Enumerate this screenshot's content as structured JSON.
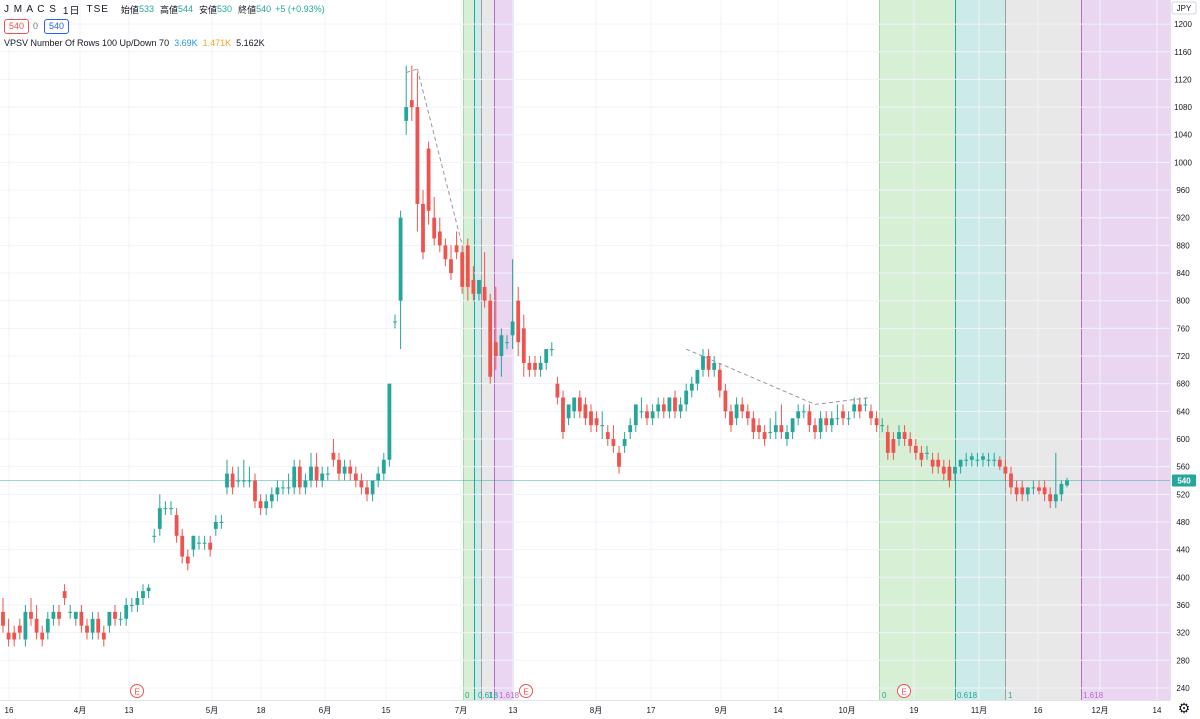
{
  "header": {
    "symbol": "J M A C S",
    "interval": "1日",
    "exchange": "TSE",
    "ohlc": [
      {
        "label": "始値",
        "value": "533"
      },
      {
        "label": "高値",
        "value": "544"
      },
      {
        "label": "安値",
        "value": "530"
      },
      {
        "label": "終値",
        "value": "540"
      }
    ],
    "change": "+5 (+0.93%)",
    "price_box_left": "540",
    "price_box_mid": "0",
    "price_box_right": "540",
    "indicator_name": "VPSV Number Of Rows 100 Up/Down 70",
    "indicator_values": [
      "3.69K",
      "1.471K",
      "5.162K"
    ]
  },
  "chart_data": {
    "type": "candlestick",
    "currency": "JPY",
    "y_ticks": [
      1200,
      1160,
      1120,
      1080,
      1040,
      1000,
      960,
      920,
      880,
      840,
      800,
      760,
      720,
      680,
      640,
      600,
      560,
      520,
      480,
      440,
      400,
      360,
      320,
      280,
      240
    ],
    "y_range": [
      219,
      1206
    ],
    "x_labels": [
      "16",
      "4月",
      "13",
      "5月",
      "18",
      "6月",
      "15",
      "7月",
      "13",
      "8月",
      "17",
      "9月",
      "14",
      "10月",
      "19",
      "11月",
      "16",
      "12月",
      "14"
    ],
    "current_price": "540",
    "candles": [
      [
        350,
        370,
        330,
        320
      ],
      [
        320,
        340,
        310,
        300
      ],
      [
        320,
        330,
        310,
        300
      ],
      [
        330,
        340,
        320,
        310
      ],
      [
        310,
        360,
        350,
        300
      ],
      [
        350,
        370,
        340,
        330
      ],
      [
        340,
        360,
        320,
        310
      ],
      [
        320,
        330,
        310,
        300
      ],
      [
        320,
        350,
        340,
        310
      ],
      [
        340,
        360,
        350,
        330
      ],
      [
        350,
        360,
        340,
        330
      ],
      [
        380,
        390,
        370,
        360
      ],
      [
        350,
        360,
        350,
        340
      ],
      [
        340,
        350,
        350,
        330
      ],
      [
        350,
        360,
        330,
        320
      ],
      [
        330,
        340,
        320,
        310
      ],
      [
        320,
        350,
        340,
        310
      ],
      [
        340,
        350,
        320,
        310
      ],
      [
        320,
        330,
        310,
        300
      ],
      [
        330,
        340,
        350,
        320
      ],
      [
        350,
        360,
        340,
        330
      ],
      [
        340,
        350,
        340,
        330
      ],
      [
        340,
        370,
        360,
        330
      ],
      [
        360,
        370,
        360,
        350
      ],
      [
        360,
        380,
        370,
        350
      ],
      [
        370,
        390,
        380,
        360
      ],
      [
        380,
        390,
        385,
        370
      ],
      [
        460,
        470,
        460,
        450
      ],
      [
        470,
        520,
        500,
        460
      ],
      [
        500,
        510,
        500,
        490
      ],
      [
        500,
        510,
        500,
        490
      ],
      [
        490,
        500,
        460,
        450
      ],
      [
        460,
        470,
        430,
        420
      ],
      [
        430,
        440,
        420,
        410
      ],
      [
        440,
        460,
        460,
        430
      ],
      [
        450,
        460,
        450,
        440
      ],
      [
        450,
        460,
        450,
        440
      ],
      [
        450,
        460,
        440,
        430
      ],
      [
        470,
        490,
        480,
        460
      ],
      [
        480,
        490,
        480,
        470
      ],
      [
        530,
        570,
        550,
        520
      ],
      [
        550,
        560,
        530,
        520
      ],
      [
        540,
        560,
        540,
        530
      ],
      [
        540,
        570,
        540,
        530
      ],
      [
        540,
        560,
        540,
        530
      ],
      [
        540,
        550,
        510,
        500
      ],
      [
        510,
        520,
        500,
        490
      ],
      [
        500,
        520,
        510,
        490
      ],
      [
        510,
        530,
        520,
        500
      ],
      [
        520,
        540,
        530,
        510
      ],
      [
        530,
        540,
        530,
        520
      ],
      [
        530,
        550,
        530,
        520
      ],
      [
        530,
        570,
        560,
        520
      ],
      [
        560,
        570,
        530,
        520
      ],
      [
        530,
        550,
        540,
        520
      ],
      [
        540,
        580,
        560,
        530
      ],
      [
        560,
        580,
        540,
        530
      ],
      [
        540,
        560,
        550,
        530
      ],
      [
        550,
        560,
        550,
        540
      ],
      [
        580,
        600,
        570,
        560
      ],
      [
        570,
        580,
        550,
        540
      ],
      [
        550,
        570,
        560,
        540
      ],
      [
        560,
        570,
        550,
        540
      ],
      [
        550,
        560,
        540,
        530
      ],
      [
        540,
        550,
        530,
        520
      ],
      [
        530,
        540,
        520,
        510
      ],
      [
        520,
        530,
        540,
        510
      ],
      [
        540,
        560,
        550,
        530
      ],
      [
        550,
        580,
        570,
        540
      ],
      [
        570,
        680,
        680,
        560
      ],
      [
        770,
        780,
        770,
        760
      ],
      [
        800,
        930,
        920,
        730
      ],
      [
        1060,
        1140,
        1080,
        1040
      ],
      [
        1090,
        1140,
        1080,
        1060
      ],
      [
        1080,
        1130,
        940,
        900
      ],
      [
        940,
        960,
        870,
        860
      ],
      [
        1020,
        1030,
        930,
        910
      ],
      [
        920,
        950,
        890,
        880
      ],
      [
        900,
        920,
        880,
        870
      ],
      [
        880,
        890,
        860,
        850
      ],
      [
        860,
        880,
        840,
        830
      ],
      [
        880,
        900,
        870,
        860
      ],
      [
        870,
        880,
        820,
        810
      ],
      [
        880,
        890,
        820,
        800
      ],
      [
        830,
        850,
        810,
        800
      ],
      [
        810,
        830,
        830,
        800
      ],
      [
        820,
        870,
        800,
        790
      ],
      [
        800,
        810,
        690,
        680
      ],
      [
        740,
        820,
        720,
        700
      ],
      [
        720,
        760,
        750,
        690
      ],
      [
        740,
        750,
        740,
        730
      ],
      [
        750,
        860,
        770,
        730
      ],
      [
        800,
        820,
        740,
        720
      ],
      [
        760,
        780,
        710,
        690
      ],
      [
        710,
        720,
        700,
        690
      ],
      [
        710,
        720,
        700,
        690
      ],
      [
        700,
        720,
        710,
        690
      ],
      [
        710,
        730,
        730,
        700
      ],
      [
        730,
        740,
        730,
        720
      ],
      [
        680,
        690,
        660,
        650
      ],
      [
        660,
        670,
        610,
        600
      ],
      [
        630,
        650,
        650,
        620
      ],
      [
        640,
        660,
        660,
        630
      ],
      [
        660,
        670,
        640,
        630
      ],
      [
        650,
        660,
        630,
        620
      ],
      [
        640,
        650,
        620,
        610
      ],
      [
        630,
        640,
        620,
        610
      ],
      [
        620,
        640,
        620,
        600
      ],
      [
        610,
        620,
        600,
        590
      ],
      [
        600,
        620,
        590,
        580
      ],
      [
        580,
        590,
        560,
        550
      ],
      [
        590,
        610,
        600,
        580
      ],
      [
        610,
        630,
        620,
        600
      ],
      [
        620,
        650,
        650,
        610
      ],
      [
        640,
        660,
        640,
        630
      ],
      [
        640,
        650,
        630,
        620
      ],
      [
        630,
        650,
        640,
        620
      ],
      [
        640,
        660,
        650,
        630
      ],
      [
        650,
        660,
        640,
        630
      ],
      [
        640,
        660,
        660,
        630
      ],
      [
        660,
        670,
        640,
        630
      ],
      [
        640,
        660,
        650,
        630
      ],
      [
        650,
        680,
        670,
        640
      ],
      [
        670,
        690,
        680,
        660
      ],
      [
        680,
        700,
        700,
        670
      ],
      [
        700,
        730,
        720,
        690
      ],
      [
        720,
        730,
        700,
        690
      ],
      [
        700,
        720,
        710,
        690
      ],
      [
        700,
        710,
        670,
        660
      ],
      [
        670,
        680,
        640,
        630
      ],
      [
        640,
        650,
        620,
        610
      ],
      [
        630,
        660,
        650,
        620
      ],
      [
        650,
        660,
        640,
        630
      ],
      [
        640,
        650,
        630,
        620
      ],
      [
        630,
        640,
        610,
        600
      ],
      [
        620,
        630,
        610,
        600
      ],
      [
        610,
        620,
        600,
        590
      ],
      [
        610,
        630,
        610,
        600
      ],
      [
        610,
        640,
        620,
        600
      ],
      [
        620,
        650,
        610,
        600
      ],
      [
        600,
        620,
        610,
        590
      ],
      [
        610,
        630,
        630,
        600
      ],
      [
        630,
        650,
        640,
        620
      ],
      [
        640,
        650,
        640,
        630
      ],
      [
        640,
        650,
        620,
        610
      ],
      [
        620,
        630,
        610,
        600
      ],
      [
        610,
        640,
        630,
        600
      ],
      [
        630,
        640,
        620,
        610
      ],
      [
        620,
        640,
        630,
        610
      ],
      [
        630,
        650,
        630,
        620
      ],
      [
        640,
        650,
        630,
        620
      ],
      [
        630,
        640,
        630,
        620
      ],
      [
        640,
        660,
        650,
        630
      ],
      [
        650,
        660,
        640,
        630
      ],
      [
        650,
        660,
        650,
        640
      ],
      [
        640,
        650,
        630,
        620
      ],
      [
        630,
        640,
        620,
        610
      ],
      [
        620,
        630,
        620,
        610
      ],
      [
        610,
        620,
        580,
        570
      ],
      [
        600,
        610,
        580,
        570
      ],
      [
        600,
        620,
        610,
        590
      ],
      [
        610,
        620,
        600,
        590
      ],
      [
        600,
        610,
        590,
        580
      ],
      [
        590,
        600,
        580,
        570
      ],
      [
        580,
        590,
        570,
        560
      ],
      [
        580,
        590,
        580,
        570
      ],
      [
        570,
        580,
        560,
        550
      ],
      [
        570,
        580,
        560,
        550
      ],
      [
        560,
        570,
        550,
        540
      ],
      [
        560,
        570,
        540,
        530
      ],
      [
        550,
        560,
        560,
        540
      ],
      [
        560,
        570,
        570,
        550
      ],
      [
        570,
        580,
        570,
        560
      ],
      [
        570,
        580,
        575,
        560
      ],
      [
        570,
        580,
        570,
        560
      ],
      [
        570,
        580,
        575,
        560
      ],
      [
        570,
        580,
        570,
        560
      ],
      [
        570,
        580,
        570,
        560
      ],
      [
        570,
        575,
        560,
        555
      ],
      [
        560,
        570,
        550,
        540
      ],
      [
        550,
        560,
        530,
        520
      ],
      [
        530,
        540,
        520,
        510
      ],
      [
        530,
        540,
        520,
        510
      ],
      [
        520,
        530,
        530,
        510
      ],
      [
        530,
        540,
        530,
        520
      ],
      [
        530,
        540,
        525,
        520
      ],
      [
        530,
        540,
        520,
        510
      ],
      [
        520,
        530,
        510,
        500
      ],
      [
        510,
        580,
        520,
        500
      ],
      [
        520,
        540,
        535,
        510
      ],
      [
        533,
        544,
        540,
        530
      ]
    ],
    "zones": [
      {
        "x0": 463,
        "x1": 474,
        "color": "#d7efd5",
        "line": "#a5d6a7"
      },
      {
        "x0": 474,
        "x1": 481,
        "color": "#ccebe8",
        "line": "#26a69a"
      },
      {
        "x0": 481,
        "x1": 494,
        "color": "#e8e8e8",
        "line": "#9e9e9e"
      },
      {
        "x0": 494,
        "x1": 514,
        "color": "#ead6f1",
        "line": "#ba68c8"
      },
      {
        "x0": 879,
        "x1": 955,
        "color": "#d7efd5",
        "line": "#a5d6a7"
      },
      {
        "x0": 955,
        "x1": 1005,
        "color": "#ccebe8",
        "line": "#26a69a"
      },
      {
        "x0": 1005,
        "x1": 1081,
        "color": "#e8e8e8",
        "line": "#9e9e9e"
      },
      {
        "x0": 1081,
        "x1": 1170,
        "color": "#ead6f1",
        "line": "#ba68c8"
      }
    ],
    "zone_labels": [
      {
        "text": "0",
        "color": "#26a69a"
      },
      {
        "text": "0.618",
        "color": "#26a69a"
      },
      {
        "text": "1",
        "color": "#26a69a"
      },
      {
        "text": "1.618",
        "color": "#ba68c8"
      },
      {
        "text": "0",
        "color": "#26a69a"
      },
      {
        "text": "0.618",
        "color": "#26a69a"
      },
      {
        "text": "1",
        "color": "#26a69a"
      },
      {
        "text": "1.618",
        "color": "#ba68c8"
      }
    ],
    "earnings_marker": "E",
    "colors": {
      "up": "#26a69a",
      "down": "#ef5350",
      "grid": "#f0f3fa",
      "axis_text": "#131722",
      "current_line": "#26a69a",
      "dashed": "#9598a1"
    }
  }
}
